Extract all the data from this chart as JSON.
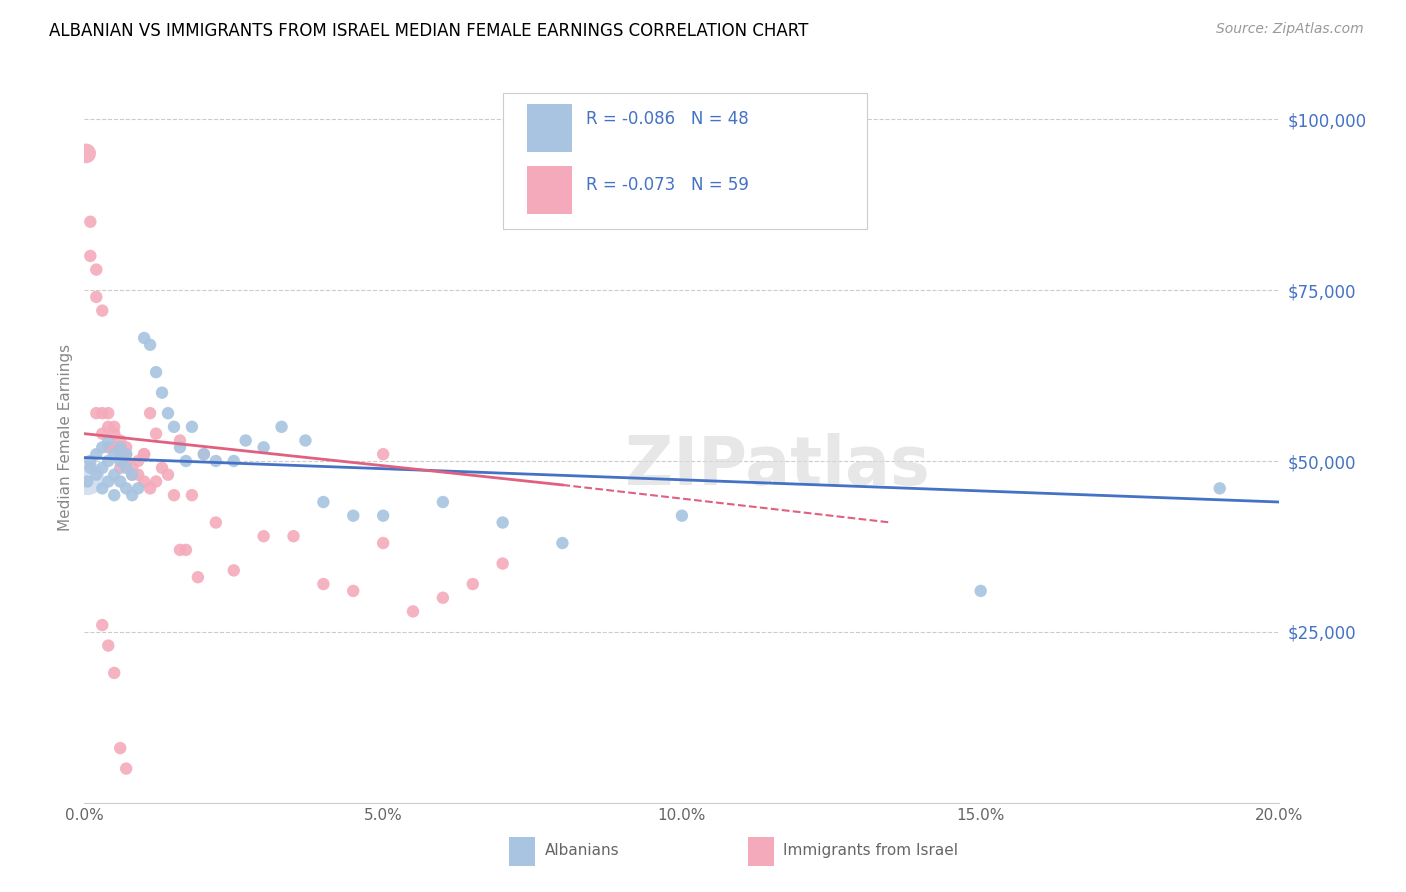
{
  "title": "ALBANIAN VS IMMIGRANTS FROM ISRAEL MEDIAN FEMALE EARNINGS CORRELATION CHART",
  "source": "Source: ZipAtlas.com",
  "ylabel": "Median Female Earnings",
  "yticks": [
    0,
    25000,
    50000,
    75000,
    100000
  ],
  "ytick_labels": [
    "",
    "$25,000",
    "$50,000",
    "$75,000",
    "$100,000"
  ],
  "xlim": [
    0.0,
    0.2
  ],
  "ylim": [
    0,
    107000
  ],
  "legend_r_blue": "-0.086",
  "legend_n_blue": "48",
  "legend_r_pink": "-0.073",
  "legend_n_pink": "59",
  "color_blue": "#A8C4E0",
  "color_pink": "#F4AABB",
  "color_blue_line": "#4472C4",
  "color_pink_line": "#E06080",
  "color_text_blue": "#4472C4",
  "watermark": "ZIPatlas",
  "blue_x": [
    0.0005,
    0.001,
    0.001,
    0.002,
    0.002,
    0.003,
    0.003,
    0.003,
    0.004,
    0.004,
    0.004,
    0.005,
    0.005,
    0.005,
    0.006,
    0.006,
    0.006,
    0.007,
    0.007,
    0.007,
    0.008,
    0.008,
    0.009,
    0.01,
    0.011,
    0.012,
    0.013,
    0.014,
    0.015,
    0.016,
    0.017,
    0.018,
    0.02,
    0.022,
    0.025,
    0.027,
    0.03,
    0.033,
    0.037,
    0.04,
    0.045,
    0.05,
    0.06,
    0.07,
    0.08,
    0.1,
    0.15,
    0.19
  ],
  "blue_y": [
    47000,
    49000,
    50000,
    48000,
    51000,
    46000,
    49000,
    52000,
    47000,
    50000,
    53000,
    45000,
    48000,
    51000,
    47000,
    50000,
    52000,
    46000,
    49000,
    51000,
    45000,
    48000,
    46000,
    68000,
    67000,
    63000,
    60000,
    57000,
    55000,
    52000,
    50000,
    55000,
    51000,
    50000,
    50000,
    53000,
    52000,
    55000,
    53000,
    44000,
    42000,
    42000,
    44000,
    41000,
    38000,
    42000,
    31000,
    46000
  ],
  "blue_size": [
    80,
    80,
    80,
    80,
    80,
    80,
    80,
    80,
    80,
    80,
    80,
    80,
    80,
    80,
    80,
    80,
    80,
    80,
    80,
    80,
    80,
    80,
    80,
    80,
    80,
    80,
    80,
    80,
    80,
    80,
    80,
    80,
    80,
    80,
    80,
    80,
    80,
    80,
    80,
    80,
    80,
    80,
    80,
    80,
    80,
    80,
    80,
    80
  ],
  "pink_x": [
    0.0003,
    0.001,
    0.001,
    0.002,
    0.002,
    0.002,
    0.003,
    0.003,
    0.003,
    0.004,
    0.004,
    0.004,
    0.005,
    0.005,
    0.005,
    0.006,
    0.006,
    0.006,
    0.006,
    0.007,
    0.007,
    0.007,
    0.008,
    0.008,
    0.009,
    0.009,
    0.01,
    0.01,
    0.011,
    0.011,
    0.012,
    0.013,
    0.014,
    0.015,
    0.016,
    0.016,
    0.017,
    0.018,
    0.019,
    0.02,
    0.022,
    0.025,
    0.03,
    0.035,
    0.04,
    0.045,
    0.05,
    0.055,
    0.06,
    0.07,
    0.003,
    0.004,
    0.005,
    0.006,
    0.007,
    0.05,
    0.065,
    0.01,
    0.012
  ],
  "pink_y": [
    95000,
    85000,
    80000,
    78000,
    74000,
    57000,
    72000,
    57000,
    54000,
    57000,
    55000,
    52000,
    55000,
    54000,
    52000,
    53000,
    52000,
    51000,
    49000,
    52000,
    51000,
    50000,
    49000,
    48000,
    50000,
    48000,
    47000,
    51000,
    57000,
    46000,
    54000,
    49000,
    48000,
    45000,
    37000,
    53000,
    37000,
    45000,
    33000,
    51000,
    41000,
    34000,
    39000,
    39000,
    32000,
    31000,
    51000,
    28000,
    30000,
    35000,
    26000,
    23000,
    19000,
    8000,
    5000,
    38000,
    32000,
    51000,
    47000
  ],
  "pink_size": [
    200,
    80,
    80,
    80,
    80,
    80,
    80,
    80,
    80,
    80,
    80,
    80,
    80,
    80,
    80,
    80,
    80,
    80,
    80,
    80,
    80,
    80,
    80,
    80,
    80,
    80,
    80,
    80,
    80,
    80,
    80,
    80,
    80,
    80,
    80,
    80,
    80,
    80,
    80,
    80,
    80,
    80,
    80,
    80,
    80,
    80,
    80,
    80,
    80,
    80,
    80,
    80,
    80,
    80,
    80,
    80,
    80,
    80,
    80
  ]
}
